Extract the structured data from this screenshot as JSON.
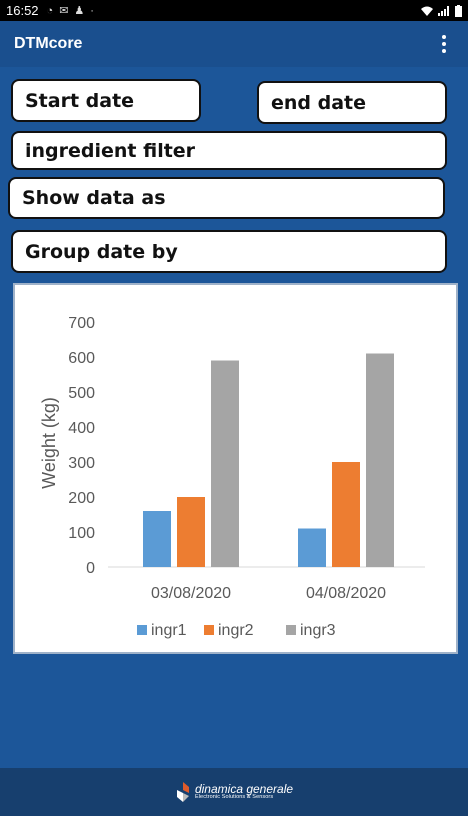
{
  "status": {
    "time": "16:52"
  },
  "app": {
    "title": "DTMcore"
  },
  "filters": {
    "start_date": "Start date",
    "end_date": "end date",
    "ingredient": "ingredient filter",
    "show_data": "Show data as",
    "group_date": "Group date by"
  },
  "chart_data": {
    "type": "bar",
    "categories": [
      "03/08/2020",
      "04/08/2020"
    ],
    "series": [
      {
        "name": "ingr1",
        "values": [
          160,
          110
        ],
        "color": "#5b9bd5"
      },
      {
        "name": "ingr2",
        "values": [
          200,
          300
        ],
        "color": "#ed7d31"
      },
      {
        "name": "ingr3",
        "values": [
          590,
          610
        ],
        "color": "#a5a5a5"
      }
    ],
    "ylabel": "Weight (kg)",
    "ylim": [
      0,
      700
    ],
    "yticks": [
      0,
      100,
      200,
      300,
      400,
      500,
      600,
      700
    ],
    "grid": false,
    "legend": "bottom"
  },
  "footer": {
    "brand": "dinamica generale",
    "tagline": "Electronic Solutions & Sensors"
  }
}
